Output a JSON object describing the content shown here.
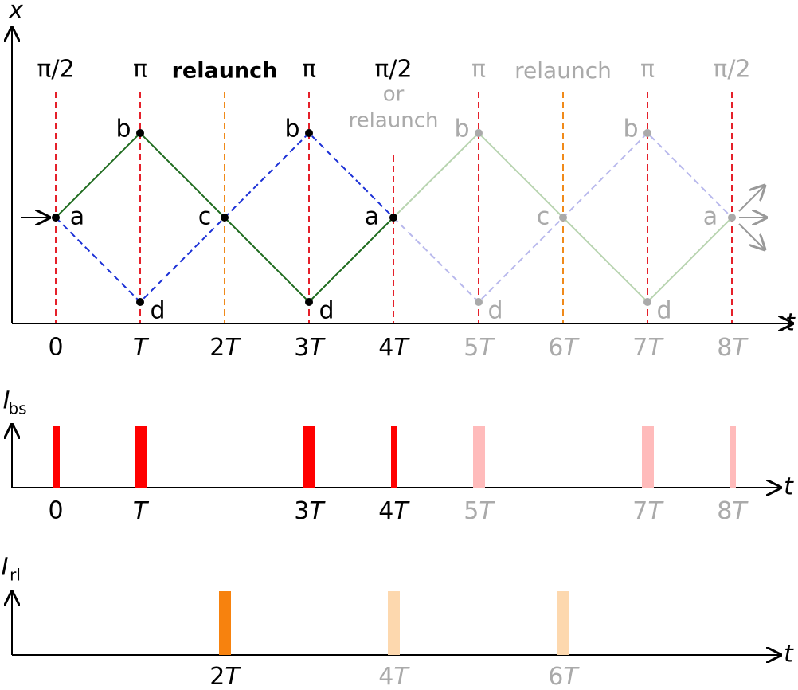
{
  "top": {
    "axis_labels": {
      "y": "x",
      "x": "t"
    },
    "pulse_labels": [
      "π/2",
      "π",
      "relaunch",
      "π",
      "π/2",
      "π",
      "relaunch",
      "π",
      "π/2"
    ],
    "pulse_note": [
      "or",
      "relaunch"
    ],
    "point_labels": [
      "a",
      "b",
      "c",
      "d",
      "b",
      "d",
      "a",
      "b",
      "d",
      "c",
      "b",
      "d",
      "a"
    ],
    "tick_labels": [
      "0",
      "T",
      "2T",
      "3T",
      "4T",
      "5T",
      "6T",
      "7T",
      "8T"
    ]
  },
  "bs": {
    "axis_label": {
      "main": "I",
      "sub": "bs"
    },
    "x_label": "t",
    "tick_labels": [
      "0",
      "T",
      "3T",
      "4T",
      "5T",
      "7T",
      "8T"
    ]
  },
  "rl": {
    "axis_label": {
      "main": "I",
      "sub": "rl"
    },
    "x_label": "t",
    "tick_labels": [
      "2T",
      "4T",
      "6T"
    ]
  }
}
